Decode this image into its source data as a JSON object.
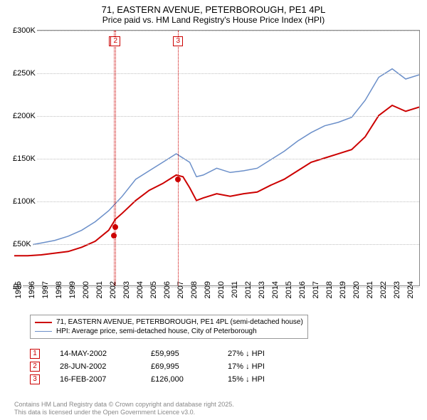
{
  "title": {
    "line1": "71, EASTERN AVENUE, PETERBOROUGH, PE1 4PL",
    "line2": "Price paid vs. HM Land Registry's House Price Index (HPI)"
  },
  "chart": {
    "type": "line",
    "background_color": "#ffffff",
    "grid_color": "#c0c0c0",
    "axis_color": "#888888",
    "font_size": 11,
    "xlim": [
      1995,
      2025
    ],
    "ylim": [
      0,
      300000
    ],
    "ytick_step": 50000,
    "yticks": [
      {
        "v": 0,
        "label": "£0"
      },
      {
        "v": 50000,
        "label": "£50K"
      },
      {
        "v": 100000,
        "label": "£100K"
      },
      {
        "v": 150000,
        "label": "£150K"
      },
      {
        "v": 200000,
        "label": "£200K"
      },
      {
        "v": 250000,
        "label": "£250K"
      },
      {
        "v": 300000,
        "label": "£300K"
      }
    ],
    "xticks": [
      1995,
      1996,
      1997,
      1998,
      1999,
      2000,
      2001,
      2002,
      2003,
      2004,
      2005,
      2006,
      2007,
      2008,
      2009,
      2010,
      2011,
      2012,
      2013,
      2014,
      2015,
      2016,
      2017,
      2018,
      2019,
      2020,
      2021,
      2022,
      2023,
      2024
    ],
    "series": [
      {
        "name": "71, EASTERN AVENUE, PETERBOROUGH, PE1 4PL (semi-detached house)",
        "color": "#cc0000",
        "line_width": 2,
        "data": [
          [
            1995,
            35000
          ],
          [
            1996,
            35000
          ],
          [
            1997,
            36000
          ],
          [
            1998,
            38000
          ],
          [
            1999,
            40000
          ],
          [
            2000,
            45000
          ],
          [
            2001,
            52000
          ],
          [
            2002,
            65000
          ],
          [
            2002.5,
            78000
          ],
          [
            2003,
            85000
          ],
          [
            2004,
            100000
          ],
          [
            2005,
            112000
          ],
          [
            2006,
            120000
          ],
          [
            2007,
            130000
          ],
          [
            2007.5,
            128000
          ],
          [
            2008,
            115000
          ],
          [
            2008.5,
            100000
          ],
          [
            2009,
            103000
          ],
          [
            2010,
            108000
          ],
          [
            2011,
            105000
          ],
          [
            2012,
            108000
          ],
          [
            2013,
            110000
          ],
          [
            2014,
            118000
          ],
          [
            2015,
            125000
          ],
          [
            2016,
            135000
          ],
          [
            2017,
            145000
          ],
          [
            2018,
            150000
          ],
          [
            2019,
            155000
          ],
          [
            2020,
            160000
          ],
          [
            2021,
            175000
          ],
          [
            2022,
            200000
          ],
          [
            2023,
            212000
          ],
          [
            2024,
            205000
          ],
          [
            2025,
            210000
          ]
        ]
      },
      {
        "name": "HPI: Average price, semi-detached house, City of Peterborough",
        "color": "#6b8fc9",
        "line_width": 1.5,
        "data": [
          [
            1995,
            45000
          ],
          [
            1996,
            47000
          ],
          [
            1997,
            50000
          ],
          [
            1998,
            53000
          ],
          [
            1999,
            58000
          ],
          [
            2000,
            65000
          ],
          [
            2001,
            75000
          ],
          [
            2002,
            88000
          ],
          [
            2003,
            105000
          ],
          [
            2004,
            125000
          ],
          [
            2005,
            135000
          ],
          [
            2006,
            145000
          ],
          [
            2007,
            155000
          ],
          [
            2008,
            145000
          ],
          [
            2008.5,
            128000
          ],
          [
            2009,
            130000
          ],
          [
            2010,
            138000
          ],
          [
            2011,
            133000
          ],
          [
            2012,
            135000
          ],
          [
            2013,
            138000
          ],
          [
            2014,
            148000
          ],
          [
            2015,
            158000
          ],
          [
            2016,
            170000
          ],
          [
            2017,
            180000
          ],
          [
            2018,
            188000
          ],
          [
            2019,
            192000
          ],
          [
            2020,
            198000
          ],
          [
            2021,
            218000
          ],
          [
            2022,
            245000
          ],
          [
            2023,
            255000
          ],
          [
            2024,
            243000
          ],
          [
            2025,
            248000
          ]
        ]
      }
    ],
    "vlines": [
      {
        "x": 2002.37,
        "color": "#cc0000",
        "marker": "1"
      },
      {
        "x": 2002.49,
        "color": "#cc0000",
        "marker": "2"
      },
      {
        "x": 2007.12,
        "color": "#cc0000",
        "marker": "3"
      }
    ],
    "points": [
      {
        "x": 2002.37,
        "y": 59995,
        "color": "#cc0000"
      },
      {
        "x": 2002.49,
        "y": 69995,
        "color": "#cc0000"
      },
      {
        "x": 2007.12,
        "y": 126000,
        "color": "#cc0000"
      }
    ]
  },
  "legend": {
    "items": [
      {
        "color": "#cc0000",
        "width": 2,
        "label": "71, EASTERN AVENUE, PETERBOROUGH, PE1 4PL (semi-detached house)"
      },
      {
        "color": "#6b8fc9",
        "width": 1.5,
        "label": "HPI: Average price, semi-detached house, City of Peterborough"
      }
    ]
  },
  "transactions": [
    {
      "n": "1",
      "date": "14-MAY-2002",
      "price": "£59,995",
      "delta": "27% ↓ HPI"
    },
    {
      "n": "2",
      "date": "28-JUN-2002",
      "price": "£69,995",
      "delta": "17% ↓ HPI"
    },
    {
      "n": "3",
      "date": "16-FEB-2007",
      "price": "£126,000",
      "delta": "15% ↓ HPI"
    }
  ],
  "footer": {
    "line1": "Contains HM Land Registry data © Crown copyright and database right 2025.",
    "line2": "This data is licensed under the Open Government Licence v3.0."
  }
}
